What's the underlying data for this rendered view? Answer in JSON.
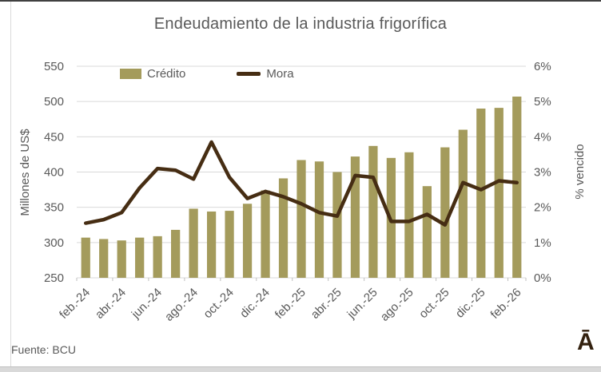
{
  "title": "Endeudamiento de la industria frigorífica",
  "source": "Fuente: BCU",
  "logo": "Ā",
  "legend": {
    "credito": "Crédito",
    "mora": "Mora"
  },
  "colors": {
    "bar": "#a49b5c",
    "line": "#462d13",
    "grid": "#d9d9d9",
    "tick": "#bfbfbf",
    "text": "#595959",
    "logo": "#33210f"
  },
  "left_axis": {
    "title": "Millones de US$",
    "ticks": [
      250,
      300,
      350,
      400,
      450,
      500,
      550
    ]
  },
  "right_axis": {
    "title": "% vencido",
    "ticks": [
      "0%",
      "1%",
      "2%",
      "3%",
      "4%",
      "5%",
      "6%"
    ],
    "tick_values": [
      0,
      1,
      2,
      3,
      4,
      5,
      6
    ]
  },
  "x_axis": {
    "tick_labels": [
      "feb.-24",
      "abr.-24",
      "jun.-24",
      "ago.-24",
      "oct.-24",
      "dic.-24",
      "feb.-25",
      "abr.-25",
      "jun.-25",
      "ago.-25",
      "oct.-25",
      "dic.-25",
      "feb.-26"
    ]
  },
  "chart_data": {
    "type": "combo",
    "title": "Endeudamiento de la industria frigorífica",
    "categories": [
      "feb.-24",
      "mar.-24",
      "abr.-24",
      "may.-24",
      "jun.-24",
      "jul.-24",
      "ago.-24",
      "sep.-24",
      "oct.-24",
      "nov.-24",
      "dic.-24",
      "ene.-25",
      "feb.-25",
      "mar.-25",
      "abr.-25",
      "may.-25",
      "jun.-25",
      "jul.-25",
      "ago.-25",
      "sep.-25",
      "oct.-25",
      "nov.-25",
      "dic.-25",
      "ene.-26",
      "feb.-26"
    ],
    "series": [
      {
        "name": "Crédito",
        "type": "bar",
        "axis": "left",
        "values": [
          307,
          305,
          303,
          307,
          309,
          318,
          348,
          344,
          345,
          355,
          374,
          391,
          417,
          415,
          400,
          422,
          437,
          420,
          428,
          380,
          435,
          460,
          490,
          491,
          507
        ]
      },
      {
        "name": "Mora",
        "type": "line",
        "axis": "right",
        "values": [
          1.55,
          1.65,
          1.85,
          2.55,
          3.1,
          3.05,
          2.8,
          3.85,
          2.85,
          2.25,
          2.45,
          2.3,
          2.1,
          1.85,
          1.75,
          2.9,
          2.85,
          1.6,
          1.6,
          1.8,
          1.5,
          2.7,
          2.5,
          2.75,
          2.7
        ]
      }
    ],
    "ylabel_left": "Millones de US$",
    "ylabel_right": "% vencido",
    "ylim_left": [
      250,
      550
    ],
    "ylim_right": [
      0,
      6
    ],
    "grid": true,
    "legend_position": "top"
  }
}
